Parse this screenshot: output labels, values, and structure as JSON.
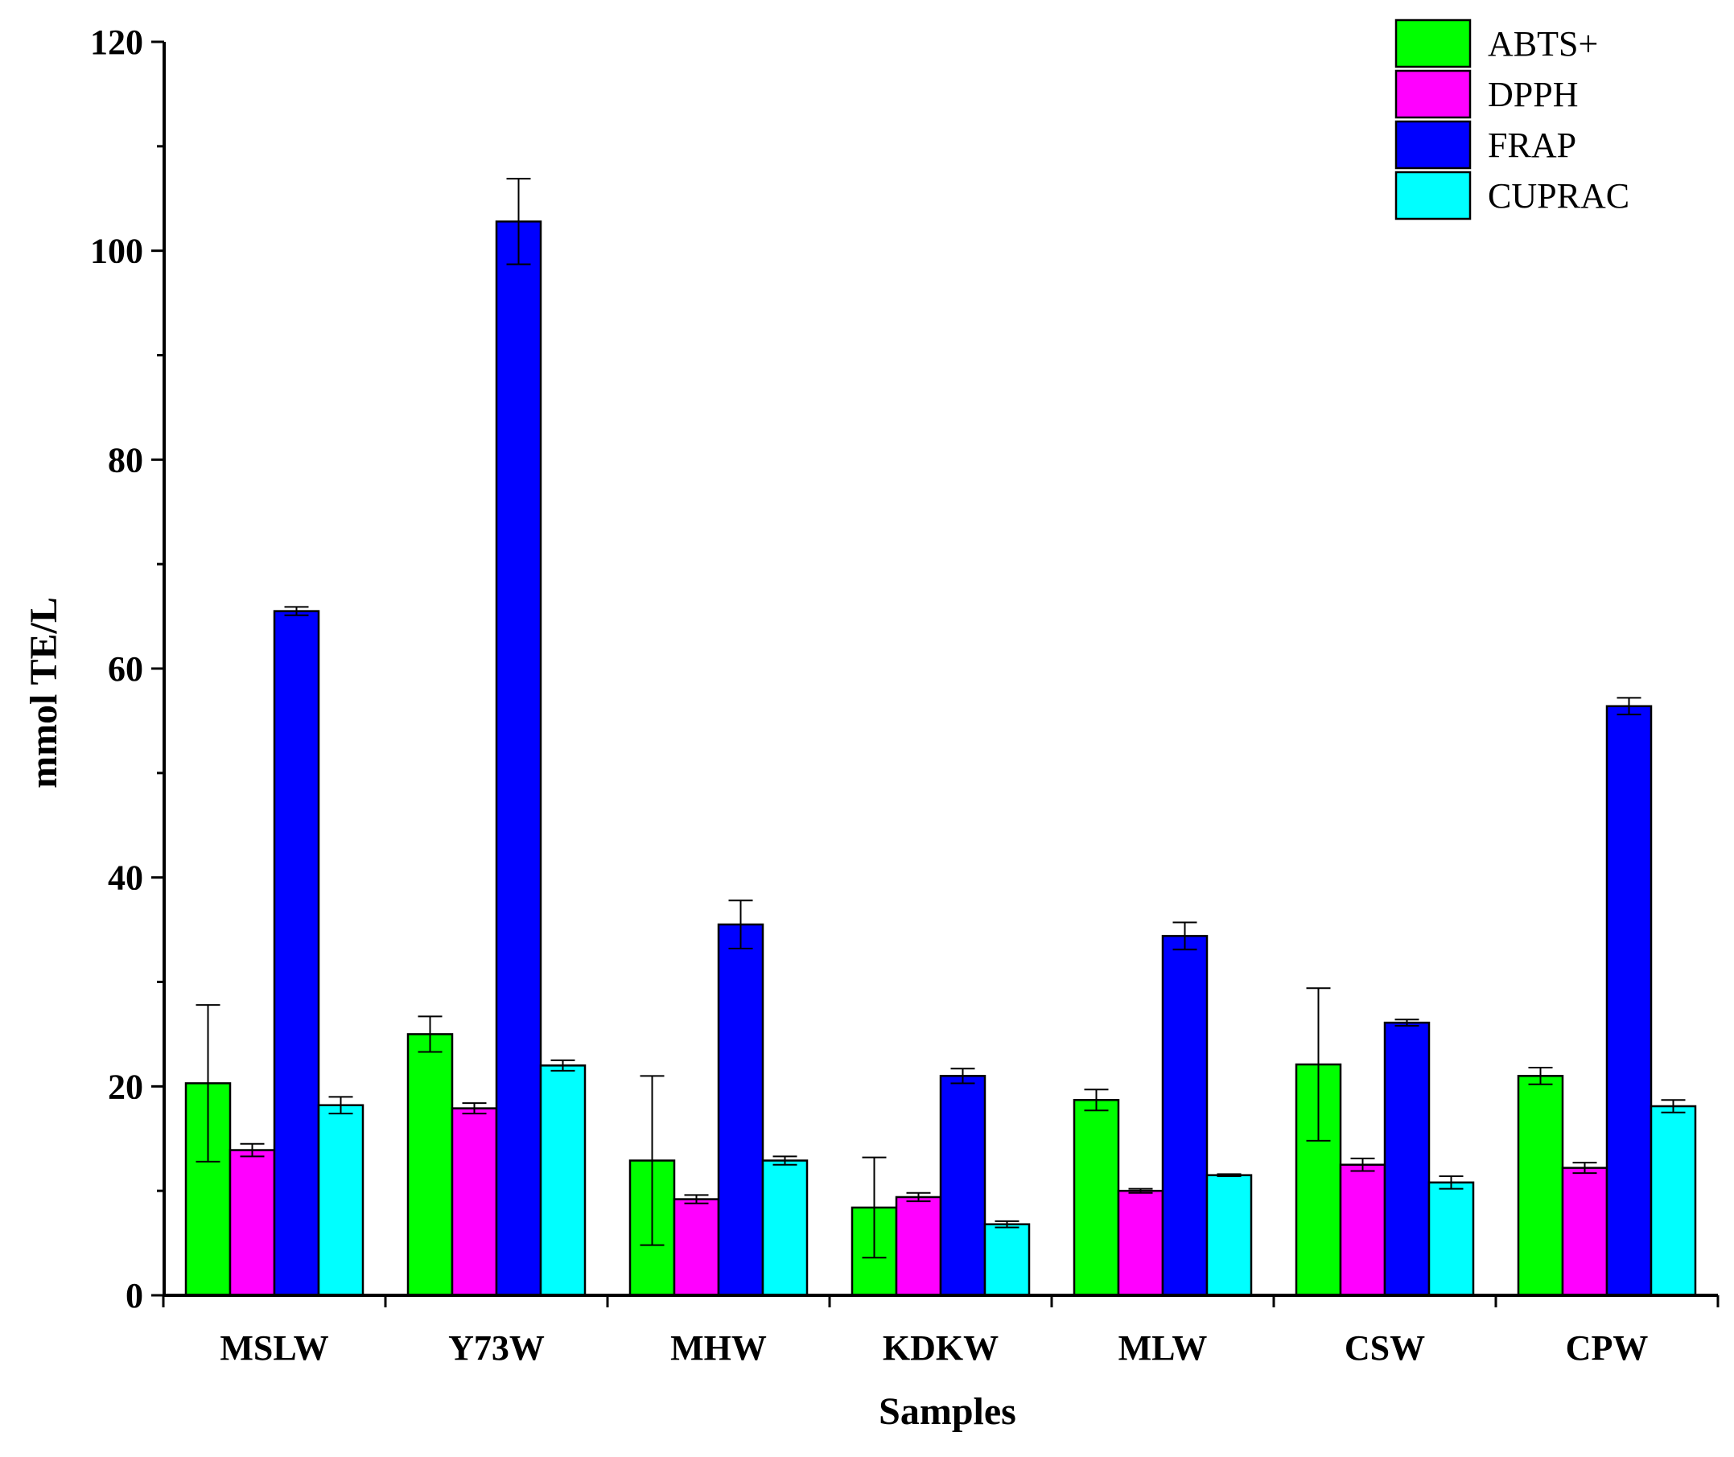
{
  "chart_data": {
    "type": "bar",
    "title": "",
    "xlabel": "Samples",
    "ylabel": "mmol TE/L",
    "ylim": [
      0,
      120
    ],
    "yticks": [
      0,
      20,
      40,
      60,
      80,
      100,
      120
    ],
    "ytick_labels": [
      "0",
      "20",
      "40",
      "60",
      "80",
      "100",
      "120"
    ],
    "y_minor_step": 10,
    "grid": false,
    "legend_position": "top-right",
    "categories": [
      "MSLW",
      "Y73W",
      "MHW",
      "KDKW",
      "MLW",
      "CSW",
      "CPW"
    ],
    "series": [
      {
        "name": "ABTS+",
        "color": "#00ff00",
        "values": [
          20.3,
          25.0,
          12.9,
          8.4,
          18.7,
          22.1,
          21.0
        ],
        "errors": [
          7.5,
          1.7,
          8.1,
          4.8,
          1.0,
          7.3,
          0.8
        ]
      },
      {
        "name": "DPPH",
        "color": "#ff00ff",
        "values": [
          13.9,
          17.9,
          9.2,
          9.4,
          10.0,
          12.5,
          12.2
        ],
        "errors": [
          0.6,
          0.5,
          0.4,
          0.4,
          0.2,
          0.6,
          0.5
        ]
      },
      {
        "name": "FRAP",
        "color": "#0000ff",
        "values": [
          65.5,
          102.8,
          35.5,
          21.0,
          34.4,
          26.1,
          56.4
        ],
        "errors": [
          0.4,
          4.1,
          2.3,
          0.7,
          1.3,
          0.3,
          0.8
        ]
      },
      {
        "name": "CUPRAC",
        "color": "#00ffff",
        "values": [
          18.2,
          22.0,
          12.9,
          6.8,
          11.5,
          10.8,
          18.1
        ],
        "errors": [
          0.8,
          0.5,
          0.4,
          0.3,
          0.1,
          0.6,
          0.6
        ]
      }
    ]
  }
}
